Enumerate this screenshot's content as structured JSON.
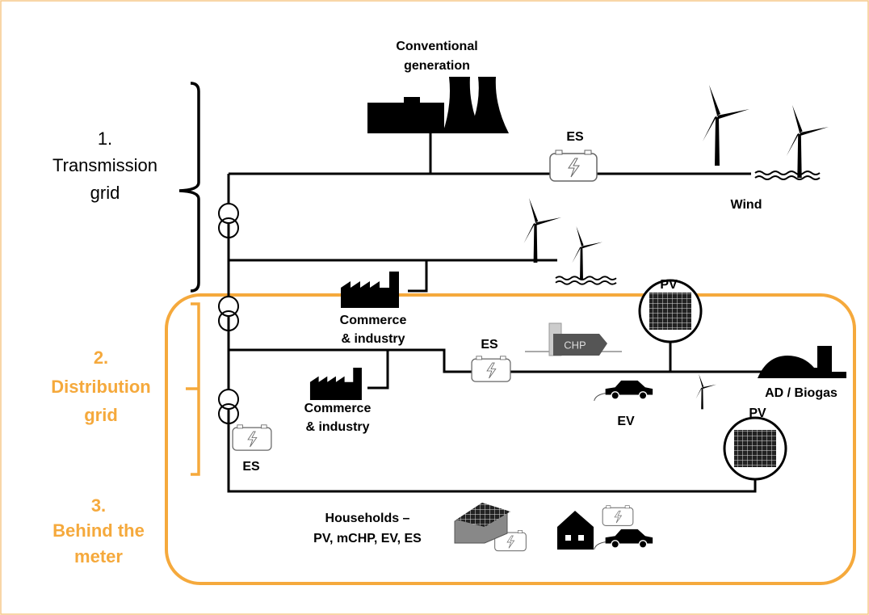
{
  "sections": [
    {
      "number": "1.",
      "lines": [
        "Transmission",
        "grid"
      ]
    },
    {
      "number": "2.",
      "lines": [
        "Distribution",
        "grid"
      ]
    },
    {
      "number": "3.",
      "lines": [
        "Behind the",
        "meter"
      ]
    }
  ],
  "nodes": [
    {
      "label": [
        "Conventional",
        "generation"
      ]
    },
    {
      "label": [
        "ES"
      ]
    },
    {
      "label": [
        "Wind"
      ]
    },
    {
      "label": [
        "PV"
      ]
    },
    {
      "label": [
        "Commerce",
        "& industry"
      ]
    },
    {
      "label": [
        "ES"
      ]
    },
    {
      "label": [
        "CHP"
      ]
    },
    {
      "label": [
        "AD / Biogas"
      ]
    },
    {
      "label": [
        "EV"
      ]
    },
    {
      "label": [
        "PV"
      ]
    },
    {
      "label": [
        "Commerce",
        "& industry"
      ]
    },
    {
      "label": [
        "ES"
      ]
    },
    {
      "label": [
        "Households –",
        "PV, mCHP, EV, ES"
      ]
    }
  ]
}
